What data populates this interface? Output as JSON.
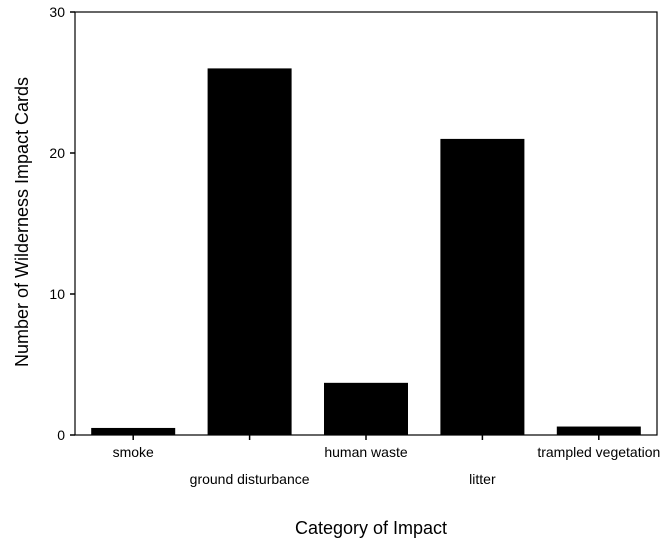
{
  "chart_data": {
    "type": "bar",
    "categories": [
      "smoke",
      "ground disturbance",
      "human waste",
      "litter",
      "trampled vegetation"
    ],
    "values": [
      0.5,
      26,
      3.7,
      21,
      0.6
    ],
    "xlabel": "Category of Impact",
    "ylabel": "Number of Wilderness Impact Cards",
    "ylim": [
      0,
      30
    ],
    "yticks": [
      0,
      10,
      20,
      30
    ],
    "yticklabels": [
      "0",
      "10",
      "20",
      "30"
    ],
    "bar_color": "#000000",
    "grid": false,
    "legend": "none"
  }
}
